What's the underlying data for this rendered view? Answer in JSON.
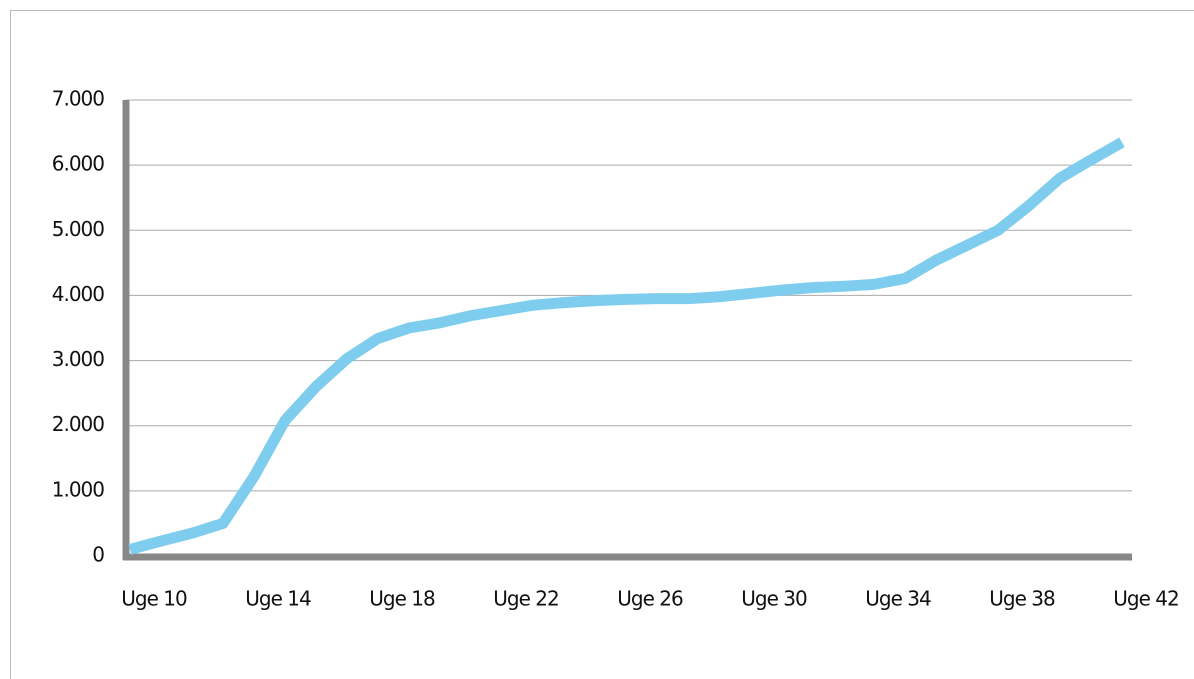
{
  "chart_data": {
    "type": "line",
    "categories": [
      "Uge 10",
      null,
      null,
      null,
      "Uge 14",
      null,
      null,
      null,
      "Uge 18",
      null,
      null,
      null,
      "Uge 22",
      null,
      null,
      null,
      "Uge 26",
      null,
      null,
      null,
      "Uge 30",
      null,
      null,
      null,
      "Uge 34",
      null,
      null,
      null,
      "Uge 38",
      null,
      null,
      null,
      "Uge 42"
    ],
    "series": [
      {
        "color": "#7fcdee",
        "values": [
          100,
          230,
          350,
          500,
          1220,
          2080,
          2600,
          3030,
          3340,
          3500,
          3580,
          3690,
          3770,
          3850,
          3890,
          3920,
          3940,
          3950,
          3950,
          3980,
          4030,
          4080,
          4120,
          4140,
          4170,
          4260,
          4540,
          4770,
          5000,
          5380,
          5800,
          6080,
          6350
        ]
      }
    ],
    "ylim": [
      0,
      7000
    ],
    "yticks": [
      0,
      {
        "value": 1000,
        "label": "1.000"
      },
      {
        "value": 2000,
        "label": "2.000"
      },
      {
        "value": 3000,
        "label": "3.000"
      },
      {
        "value": 4000,
        "label": "4.000"
      },
      {
        "value": 5000,
        "label": "5.000"
      },
      {
        "value": 6000,
        "label": "6.000"
      },
      {
        "value": 7000,
        "label": "7.000"
      }
    ],
    "grid": true
  }
}
